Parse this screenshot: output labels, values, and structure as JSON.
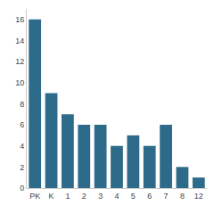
{
  "chart_data": {
    "type": "bar",
    "categories": [
      "PK",
      "K",
      "1",
      "2",
      "3",
      "4",
      "5",
      "6",
      "7",
      "8",
      "12"
    ],
    "values": [
      16,
      9,
      7,
      6,
      6,
      4,
      5,
      4,
      6,
      2,
      1
    ],
    "color": "#2e6b8a",
    "ylim": [
      0,
      17
    ],
    "yticks": [
      0,
      2,
      4,
      6,
      8,
      10,
      12,
      14,
      16
    ],
    "grid": false
  }
}
